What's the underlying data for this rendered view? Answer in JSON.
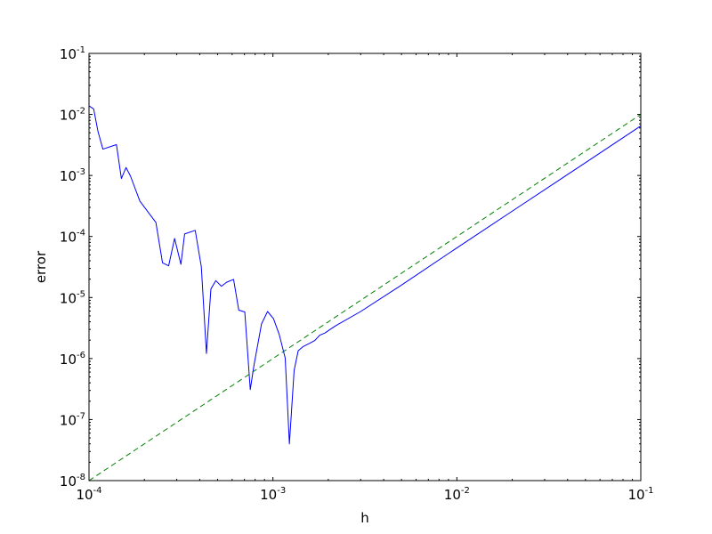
{
  "chart_data": {
    "type": "line",
    "title": "",
    "xlabel": "h",
    "ylabel": "error",
    "xscale": "log",
    "yscale": "log",
    "xlim": [
      0.0001,
      0.1
    ],
    "ylim": [
      1e-08,
      0.1
    ],
    "grid": false,
    "legend": "none",
    "x_ticks": [
      {
        "base": "10",
        "exp": "-4",
        "value": 0.0001
      },
      {
        "base": "10",
        "exp": "-3",
        "value": 0.001
      },
      {
        "base": "10",
        "exp": "-2",
        "value": 0.01
      },
      {
        "base": "10",
        "exp": "-1",
        "value": 0.1
      }
    ],
    "y_ticks": [
      {
        "base": "10",
        "exp": "-8",
        "value": 1e-08
      },
      {
        "base": "10",
        "exp": "-7",
        "value": 1e-07
      },
      {
        "base": "10",
        "exp": "-6",
        "value": 1e-06
      },
      {
        "base": "10",
        "exp": "-5",
        "value": 1e-05
      },
      {
        "base": "10",
        "exp": "-4",
        "value": 0.0001
      },
      {
        "base": "10",
        "exp": "-3",
        "value": 0.001
      },
      {
        "base": "10",
        "exp": "-2",
        "value": 0.01
      },
      {
        "base": "10",
        "exp": "-1",
        "value": 0.1
      }
    ],
    "series": [
      {
        "color": "#0000ff",
        "style": "solid",
        "x": [
          0.0001,
          0.000106,
          0.000112,
          0.000119,
          0.000141,
          0.00015,
          0.000159,
          0.000168,
          0.000189,
          0.000231,
          0.000251,
          0.000271,
          0.000292,
          0.000316,
          0.000331,
          0.000378,
          0.000408,
          0.000435,
          0.00046,
          0.000489,
          0.000525,
          0.00056,
          0.000611,
          0.000652,
          0.000703,
          0.000753,
          0.000789,
          0.000867,
          0.000935,
          0.001007,
          0.001081,
          0.001166,
          0.001229,
          0.001304,
          0.001372,
          0.001459,
          0.001567,
          0.00169,
          0.001798,
          0.001917,
          0.00204,
          0.002201,
          0.003,
          0.005,
          0.01,
          0.02,
          0.05,
          0.1
        ],
        "y": [
          0.0138,
          0.0123,
          0.0052,
          0.0027,
          0.0032,
          0.00089,
          0.00135,
          0.00098,
          0.00038,
          0.00017,
          3.7e-05,
          3.3e-05,
          9.3e-05,
          3.5e-05,
          0.00011,
          0.000126,
          3.2e-05,
          1.21e-06,
          1.38e-05,
          1.89e-05,
          1.53e-05,
          1.78e-05,
          1.98e-05,
          6.2e-06,
          5.8e-06,
          3.1e-07,
          7.8e-07,
          3.7e-06,
          5.9e-06,
          4.5e-06,
          2.5e-06,
          1.02e-06,
          4e-08,
          6.4e-07,
          1.34e-06,
          1.57e-06,
          1.75e-06,
          1.98e-06,
          2.42e-06,
          2.62e-06,
          2.98e-06,
          3.47e-06,
          5.9e-06,
          1.6e-05,
          6.5e-05,
          0.00026,
          0.00162,
          0.0065
        ]
      },
      {
        "color": "#008000",
        "style": "dashed",
        "x": [
          0.0001,
          0.1
        ],
        "y": [
          1e-08,
          0.01
        ]
      }
    ]
  }
}
